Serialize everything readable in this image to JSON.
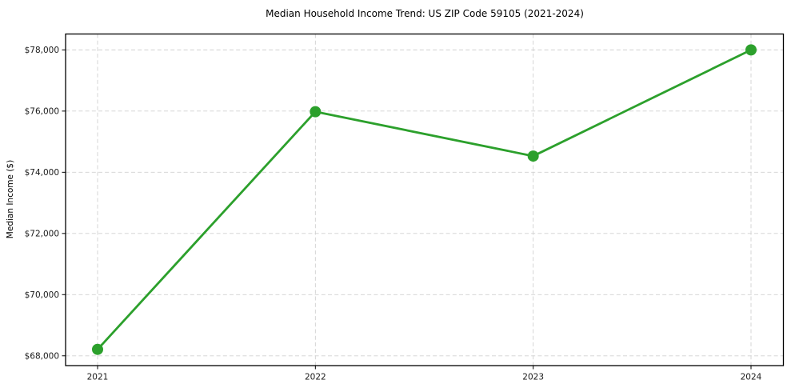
{
  "chart_data": {
    "type": "line",
    "title": "Median Household Income Trend: US ZIP Code 59105 (2021-2024)",
    "xlabel": "",
    "ylabel": "Median Income ($)",
    "categories": [
      "2021",
      "2022",
      "2023",
      "2024"
    ],
    "values": [
      68210,
      75980,
      74530,
      78000
    ],
    "y_ticks": [
      68000,
      70000,
      72000,
      74000,
      76000,
      78000
    ],
    "y_tick_labels": [
      "$68,000",
      "$70,000",
      "$72,000",
      "$74,000",
      "$76,000",
      "$78,000"
    ],
    "ylim": [
      67680,
      78520
    ],
    "grid": true,
    "grid_style": "dashed",
    "legend_position": "none",
    "colors": {
      "line": "#2ca02c",
      "marker": "#2ca02c",
      "grid": "#d0d0d0",
      "frame": "#000000",
      "tick_text": "#1a1a1a",
      "background": "#ffffff"
    }
  }
}
